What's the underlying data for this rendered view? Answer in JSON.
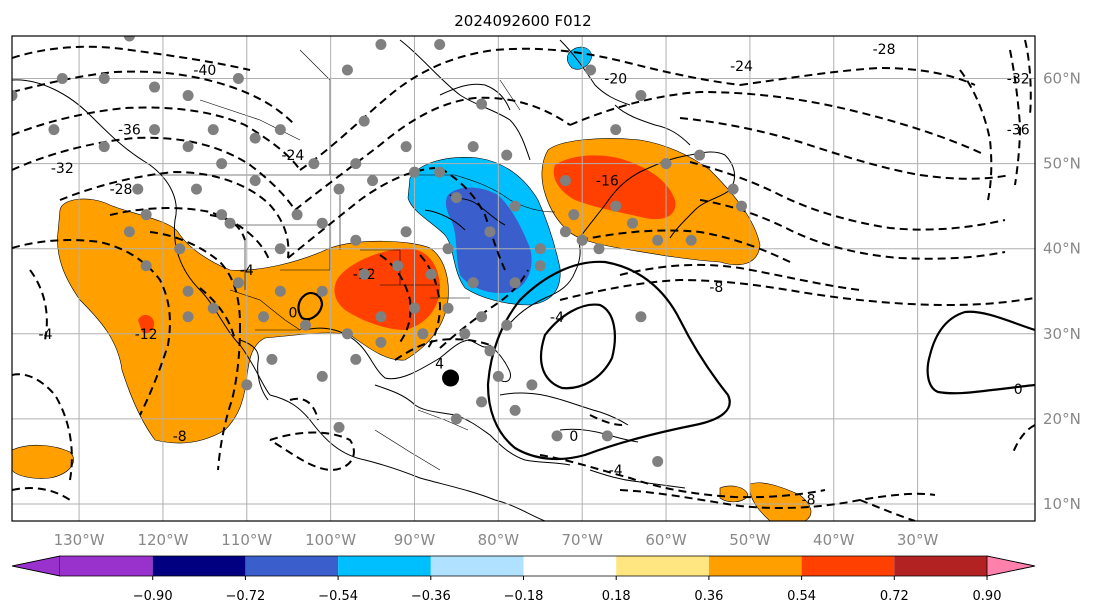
{
  "title": "2024092600 F012",
  "map": {
    "lon_range": [
      -138,
      -16
    ],
    "lat_range": [
      8,
      65
    ],
    "lon_ticks": [
      {
        "value": -130,
        "label": "130°W"
      },
      {
        "value": -120,
        "label": "120°W"
      },
      {
        "value": -110,
        "label": "110°W"
      },
      {
        "value": -100,
        "label": "100°W"
      },
      {
        "value": -90,
        "label": "90°W"
      },
      {
        "value": -80,
        "label": "80°W"
      },
      {
        "value": -70,
        "label": "70°W"
      },
      {
        "value": -60,
        "label": "60°W"
      },
      {
        "value": -50,
        "label": "50°W"
      },
      {
        "value": -40,
        "label": "40°W"
      },
      {
        "value": -30,
        "label": "30°W"
      }
    ],
    "lat_ticks": [
      {
        "value": 60,
        "label": "60°N"
      },
      {
        "value": 50,
        "label": "50°N"
      },
      {
        "value": 40,
        "label": "40°N"
      },
      {
        "value": 30,
        "label": "30°N"
      },
      {
        "value": 20,
        "label": "20°N"
      },
      {
        "value": 10,
        "label": "10°N"
      }
    ],
    "grid": true,
    "storm_center": {
      "lon": -85.7,
      "lat": 24.8
    },
    "contour_labels": [
      {
        "text": "-40",
        "lon": -115,
        "lat": 61
      },
      {
        "text": "-36",
        "lon": -124,
        "lat": 54
      },
      {
        "text": "-32",
        "lon": -132,
        "lat": 49.5
      },
      {
        "text": "-28",
        "lon": -125,
        "lat": 47
      },
      {
        "text": "-24",
        "lon": -104.5,
        "lat": 51
      },
      {
        "text": "-20",
        "lon": -66,
        "lat": 60
      },
      {
        "text": "-24",
        "lon": -51,
        "lat": 61.5
      },
      {
        "text": "-28",
        "lon": -34,
        "lat": 63.5
      },
      {
        "text": "-32",
        "lon": -18,
        "lat": 60
      },
      {
        "text": "-36",
        "lon": -18,
        "lat": 54
      },
      {
        "text": "-16",
        "lon": -67,
        "lat": 48
      },
      {
        "text": "-12",
        "lon": -96,
        "lat": 37
      },
      {
        "text": "-12",
        "lon": -122,
        "lat": 30
      },
      {
        "text": "-8",
        "lon": -54,
        "lat": 35.5
      },
      {
        "text": "-8",
        "lon": -118,
        "lat": 18
      },
      {
        "text": "-8",
        "lon": -43,
        "lat": 10.5
      },
      {
        "text": "-4",
        "lon": -134,
        "lat": 30
      },
      {
        "text": "-4",
        "lon": -110,
        "lat": 37.5
      },
      {
        "text": "-4",
        "lon": -73,
        "lat": 32
      },
      {
        "text": "-4",
        "lon": -66,
        "lat": 14
      },
      {
        "text": "4",
        "lon": -87,
        "lat": 26.5
      },
      {
        "text": "0",
        "lon": -71,
        "lat": 18
      },
      {
        "text": "0",
        "lon": -18,
        "lat": 23.5
      },
      {
        "text": "0",
        "lon": -104.5,
        "lat": 32.5
      }
    ],
    "station_dots": [
      [
        -124,
        65
      ],
      [
        -132,
        60
      ],
      [
        -127,
        60
      ],
      [
        -121,
        59
      ],
      [
        -111,
        60
      ],
      [
        -117,
        58
      ],
      [
        -98,
        61
      ],
      [
        -94,
        64
      ],
      [
        -87,
        64
      ],
      [
        -82,
        57
      ],
      [
        -69,
        61
      ],
      [
        -63,
        58
      ],
      [
        -83,
        52
      ],
      [
        -96,
        55
      ],
      [
        -106,
        54
      ],
      [
        -114,
        54
      ],
      [
        -121,
        54
      ],
      [
        -133,
        54
      ],
      [
        -138,
        58
      ],
      [
        -127,
        52
      ],
      [
        -117,
        52
      ],
      [
        -113,
        50
      ],
      [
        -109,
        53
      ],
      [
        -102,
        50
      ],
      [
        -97,
        50
      ],
      [
        -91,
        52
      ],
      [
        -87,
        49
      ],
      [
        -79,
        51
      ],
      [
        -72,
        48
      ],
      [
        -66,
        54
      ],
      [
        -60,
        50
      ],
      [
        -56,
        51
      ],
      [
        -52,
        47
      ],
      [
        -123,
        47
      ],
      [
        -122,
        44
      ],
      [
        -116,
        47
      ],
      [
        -113,
        44
      ],
      [
        -109,
        48
      ],
      [
        -104,
        44
      ],
      [
        -99,
        47
      ],
      [
        -95,
        48
      ],
      [
        -90,
        49
      ],
      [
        -85,
        46
      ],
      [
        -78,
        45
      ],
      [
        -71,
        44
      ],
      [
        -66,
        45
      ],
      [
        -64,
        43
      ],
      [
        -70,
        41
      ],
      [
        -75,
        40
      ],
      [
        -81,
        42
      ],
      [
        -86,
        40
      ],
      [
        -91,
        42
      ],
      [
        -97,
        41
      ],
      [
        -101,
        43
      ],
      [
        -106,
        40
      ],
      [
        -112,
        43
      ],
      [
        -118,
        40
      ],
      [
        -122,
        38
      ],
      [
        -124,
        42
      ],
      [
        -117,
        35
      ],
      [
        -114,
        33
      ],
      [
        -111,
        36
      ],
      [
        -106,
        35
      ],
      [
        -101,
        35
      ],
      [
        -96,
        37
      ],
      [
        -92,
        38
      ],
      [
        -88,
        37
      ],
      [
        -83,
        36
      ],
      [
        -78,
        36
      ],
      [
        -75,
        38
      ],
      [
        -72,
        42
      ],
      [
        -68,
        40
      ],
      [
        -61,
        41
      ],
      [
        -57,
        41
      ],
      [
        -51,
        45
      ],
      [
        -94,
        32
      ],
      [
        -90,
        33
      ],
      [
        -86,
        33
      ],
      [
        -82,
        32
      ],
      [
        -79,
        31
      ],
      [
        -98,
        30
      ],
      [
        -103,
        31
      ],
      [
        -108,
        32
      ],
      [
        -117,
        32
      ],
      [
        -97,
        27
      ],
      [
        -94,
        29
      ],
      [
        -89,
        30
      ],
      [
        -84,
        30
      ],
      [
        -81,
        28
      ],
      [
        -76,
        24
      ],
      [
        -80,
        25
      ],
      [
        -82,
        22
      ],
      [
        -73,
        18
      ],
      [
        -67,
        18
      ],
      [
        -61,
        15
      ],
      [
        -63,
        32
      ],
      [
        -78,
        21
      ],
      [
        -85,
        20
      ],
      [
        -99,
        19
      ],
      [
        -110,
        24
      ],
      [
        -101,
        25
      ],
      [
        -107,
        27
      ]
    ]
  },
  "colorbar": {
    "labels": [
      "−0.90",
      "−0.72",
      "−0.54",
      "−0.36",
      "−0.18",
      "0.18",
      "0.36",
      "0.54",
      "0.72",
      "0.90"
    ],
    "colors": {
      "under": "#9932cc",
      "bins": [
        "#000080",
        "#3a5fcd",
        "#00bfff",
        "#b0e2ff",
        "#ffffff",
        "#ffe680",
        "#ffa000",
        "#ff4000",
        "#b22222"
      ],
      "over": "#ff80aa"
    }
  },
  "fill_colors": {
    "orange": "#ffa000",
    "red": "#ff4000",
    "deep_blue": "#3a5fcd",
    "cyan": "#00bfff"
  }
}
